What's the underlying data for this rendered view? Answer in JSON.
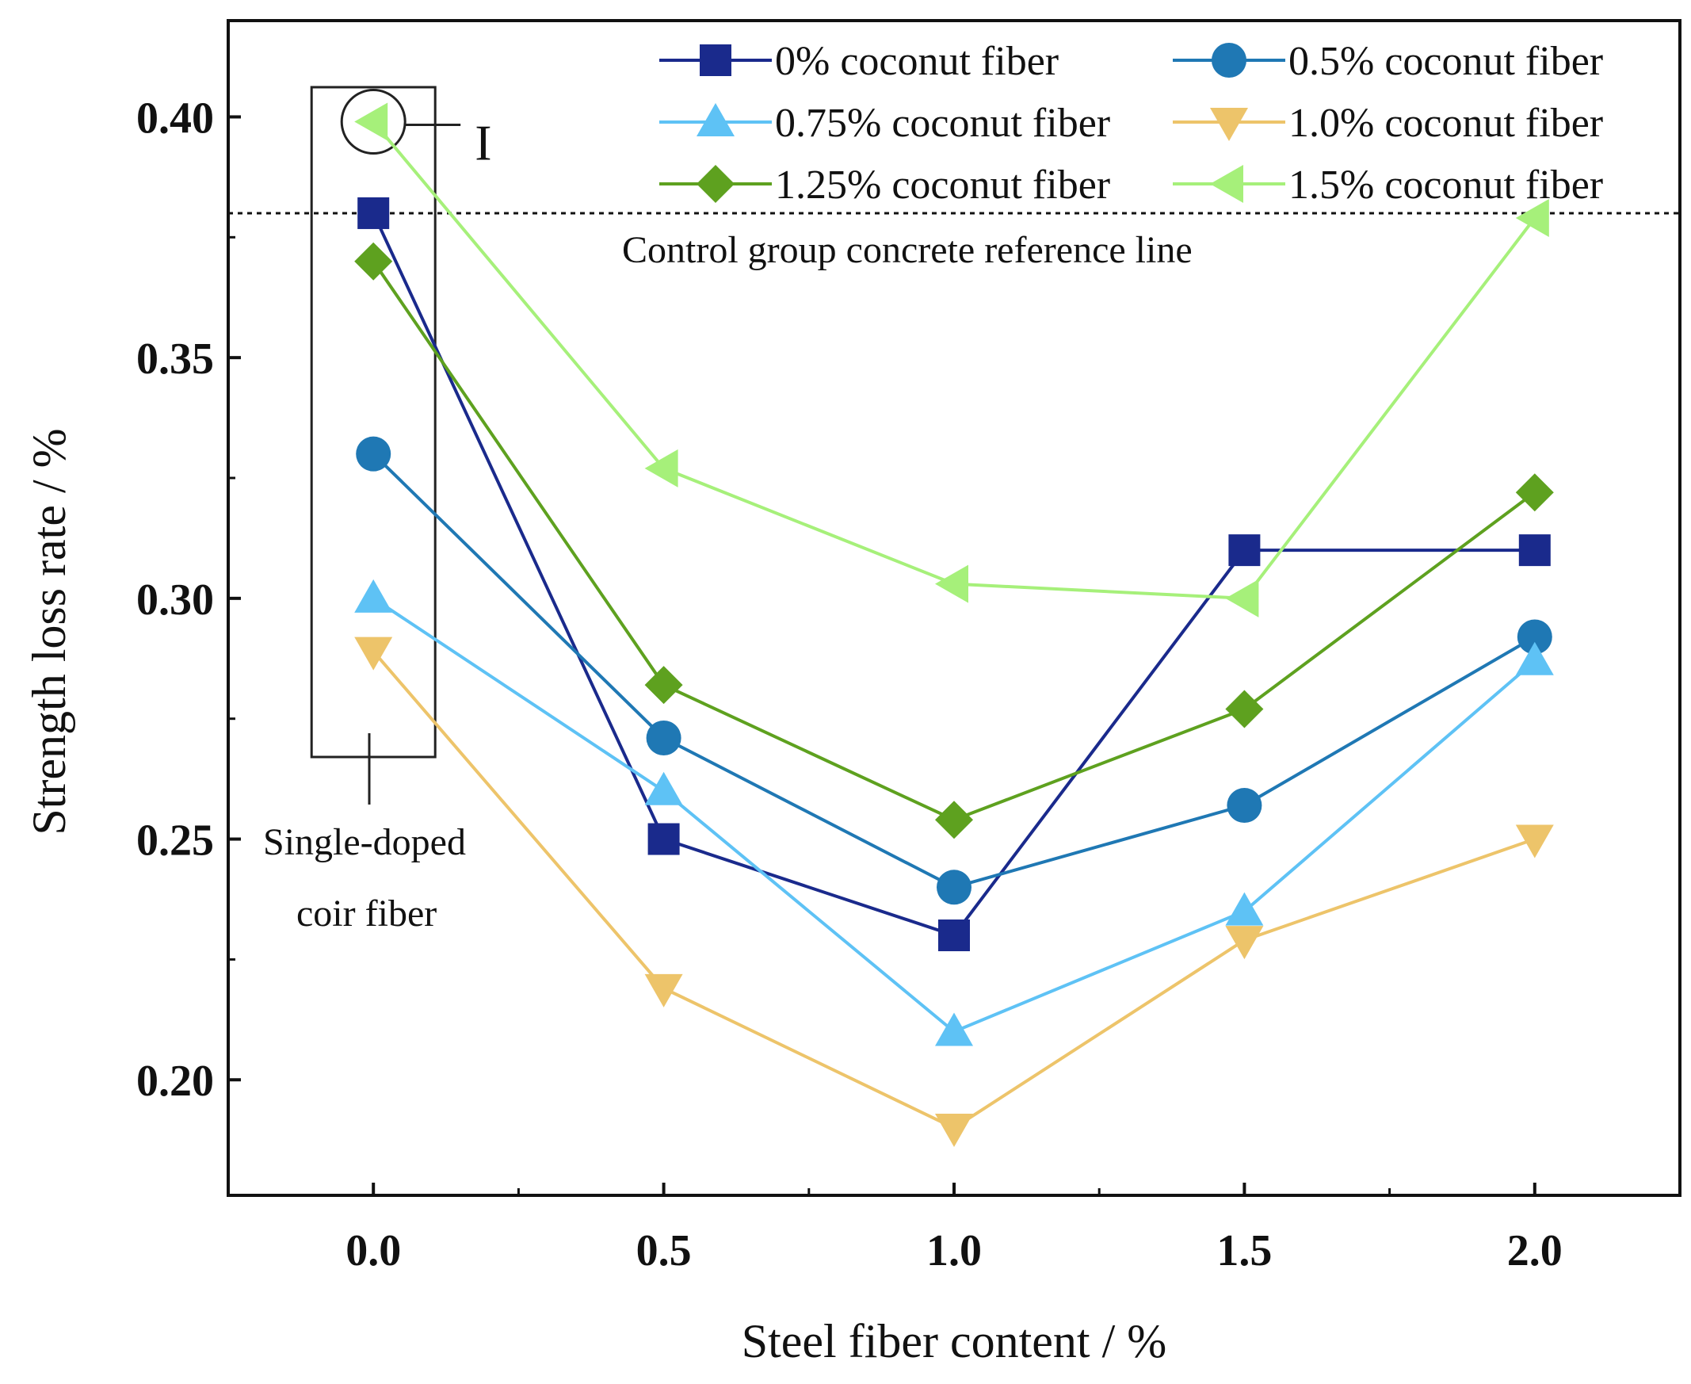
{
  "chart_data": {
    "type": "line",
    "title": "",
    "xlabel": "Steel fiber content / %",
    "ylabel": "Strength loss rate / %",
    "x": [
      0.0,
      0.5,
      1.0,
      1.5,
      2.0
    ],
    "xlim": [
      -0.25,
      2.25
    ],
    "ylim": [
      0.176,
      0.42
    ],
    "x_ticks": [
      "0.0",
      "0.5",
      "1.0",
      "1.5",
      "2.0"
    ],
    "x_tick_values": [
      0.0,
      0.5,
      1.0,
      1.5,
      2.0
    ],
    "y_ticks": [
      "0.20",
      "0.25",
      "0.30",
      "0.35",
      "0.40"
    ],
    "y_tick_values": [
      0.2,
      0.25,
      0.3,
      0.35,
      0.4
    ],
    "series": [
      {
        "name": "0% coconut fiber",
        "marker": "square",
        "color": "#1a2a8c",
        "values": [
          0.38,
          0.25,
          0.23,
          0.31,
          0.31
        ]
      },
      {
        "name": "0.5% coconut fiber",
        "marker": "circle",
        "color": "#1f78b4",
        "values": [
          0.33,
          0.271,
          0.24,
          0.257,
          0.292
        ]
      },
      {
        "name": "0.75% coconut fiber",
        "marker": "triangle-up",
        "color": "#5ec2f5",
        "values": [
          0.3,
          0.26,
          0.21,
          0.235,
          0.287
        ]
      },
      {
        "name": "1.0% coconut fiber",
        "marker": "triangle-down",
        "color": "#edc46a",
        "values": [
          0.289,
          0.219,
          0.19,
          0.229,
          0.25
        ]
      },
      {
        "name": "1.25% coconut fiber",
        "marker": "diamond",
        "color": "#5ea11f",
        "values": [
          0.37,
          0.282,
          0.254,
          0.277,
          0.322
        ]
      },
      {
        "name": "1.5% coconut fiber",
        "marker": "triangle-left",
        "color": "#a6f07a",
        "values": [
          0.399,
          0.327,
          0.303,
          0.3,
          0.379
        ]
      }
    ],
    "reference_line": {
      "value": 0.38,
      "label": "Control group concrete reference line"
    },
    "annotations": {
      "circle_label": "I",
      "box_label_line1": "Single-doped",
      "box_label_line2": "coir fiber"
    },
    "legend_placement": "top-right"
  }
}
